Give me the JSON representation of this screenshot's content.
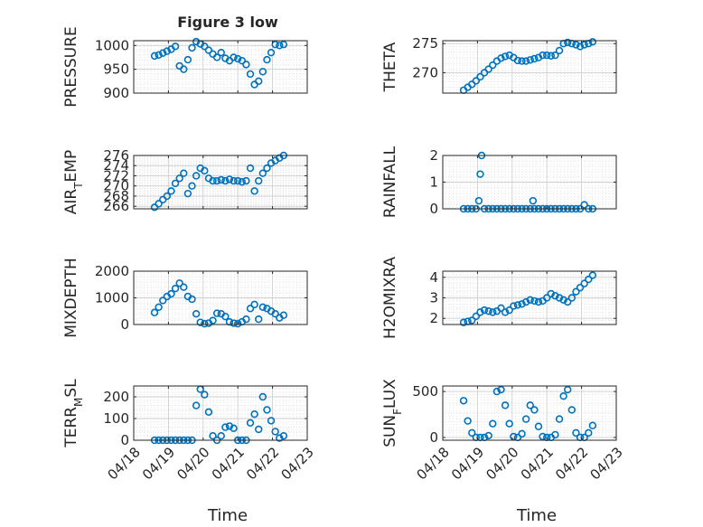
{
  "figure": {
    "title": "Figure 3 low"
  },
  "colors": {
    "marker": "#0072BD",
    "grid": "#dddddd",
    "axis": "#262626"
  },
  "chart_data": [
    {
      "type": "scatter",
      "ylabel": "PRESSURE",
      "xlabel": "",
      "ylim": [
        900,
        1010
      ],
      "yticks": [
        900,
        950,
        1000
      ],
      "x": [
        0.6,
        0.72,
        0.84,
        0.96,
        1.08,
        1.2,
        1.32,
        1.44,
        1.56,
        1.68,
        1.8,
        1.92,
        2.04,
        2.16,
        2.28,
        2.4,
        2.52,
        2.64,
        2.76,
        2.88,
        3.0,
        3.12,
        3.24,
        3.36,
        3.48,
        3.6,
        3.72,
        3.84,
        3.96,
        4.08,
        4.2,
        4.32
      ],
      "y": [
        978,
        980,
        984,
        988,
        992,
        998,
        957,
        950,
        970,
        995,
        1008,
        1003,
        998,
        990,
        982,
        975,
        985,
        973,
        968,
        975,
        972,
        968,
        960,
        940,
        918,
        925,
        945,
        970,
        985,
        1002,
        1000,
        1002
      ]
    },
    {
      "type": "scatter",
      "ylabel": "THETA",
      "xlabel": "",
      "ylim": [
        266.5,
        275.5
      ],
      "yticks": [
        270,
        275
      ],
      "x": [
        0.6,
        0.72,
        0.84,
        0.96,
        1.08,
        1.2,
        1.32,
        1.44,
        1.56,
        1.68,
        1.8,
        1.92,
        2.04,
        2.16,
        2.28,
        2.4,
        2.52,
        2.64,
        2.76,
        2.88,
        3.0,
        3.12,
        3.24,
        3.36,
        3.48,
        3.6,
        3.72,
        3.84,
        3.96,
        4.08,
        4.2,
        4.32
      ],
      "y": [
        267.0,
        267.5,
        268.0,
        268.6,
        269.3,
        270.0,
        270.6,
        271.3,
        272.0,
        272.5,
        272.8,
        273.0,
        272.6,
        272.1,
        272.0,
        272.0,
        272.2,
        272.4,
        272.6,
        273.0,
        273.0,
        272.9,
        273.0,
        273.8,
        275.0,
        275.2,
        275.0,
        274.8,
        274.5,
        274.8,
        275.0,
        275.3
      ]
    },
    {
      "type": "scatter",
      "ylabel": "AIR_TEMP",
      "xlabel": "",
      "ylim": [
        265.5,
        276
      ],
      "yticks": [
        266,
        268,
        270,
        272,
        274,
        276
      ],
      "x": [
        0.6,
        0.72,
        0.84,
        0.96,
        1.08,
        1.2,
        1.32,
        1.44,
        1.56,
        1.68,
        1.8,
        1.92,
        2.04,
        2.16,
        2.28,
        2.4,
        2.52,
        2.64,
        2.76,
        2.88,
        3.0,
        3.12,
        3.24,
        3.36,
        3.48,
        3.6,
        3.72,
        3.84,
        3.96,
        4.08,
        4.2,
        4.32
      ],
      "y": [
        265.8,
        266.5,
        267.3,
        268.0,
        269.0,
        270.5,
        271.5,
        272.5,
        268.5,
        270.0,
        272.0,
        273.5,
        273.0,
        271.5,
        271.0,
        271.0,
        271.2,
        271.0,
        271.3,
        271.0,
        271.0,
        270.8,
        271.0,
        273.5,
        269.0,
        271.0,
        272.5,
        273.5,
        274.5,
        275.0,
        275.5,
        276.0
      ]
    },
    {
      "type": "scatter",
      "ylabel": "RAINFALL",
      "xlabel": "",
      "ylim": [
        0,
        2
      ],
      "yticks": [
        0,
        1,
        2
      ],
      "x": [
        0.6,
        0.72,
        0.84,
        0.96,
        1.04,
        1.08,
        1.12,
        1.2,
        1.32,
        1.44,
        1.56,
        1.68,
        1.8,
        1.92,
        2.04,
        2.16,
        2.28,
        2.4,
        2.52,
        2.6,
        2.64,
        2.76,
        2.88,
        3.0,
        3.12,
        3.24,
        3.36,
        3.48,
        3.6,
        3.72,
        3.84,
        3.96,
        4.08,
        4.2,
        4.32
      ],
      "y": [
        0,
        0,
        0,
        0,
        0.3,
        1.3,
        2.0,
        0,
        0,
        0,
        0,
        0,
        0,
        0,
        0,
        0,
        0,
        0,
        0,
        0.3,
        0,
        0,
        0,
        0,
        0,
        0,
        0,
        0,
        0,
        0,
        0,
        0,
        0.15,
        0,
        0
      ]
    },
    {
      "type": "scatter",
      "ylabel": "MIXDEPTH",
      "xlabel": "",
      "ylim": [
        0,
        2000
      ],
      "yticks": [
        0,
        1000,
        2000
      ],
      "x": [
        0.6,
        0.72,
        0.84,
        0.96,
        1.08,
        1.2,
        1.32,
        1.44,
        1.56,
        1.68,
        1.8,
        1.92,
        2.04,
        2.16,
        2.28,
        2.4,
        2.52,
        2.64,
        2.76,
        2.88,
        3.0,
        3.12,
        3.24,
        3.36,
        3.48,
        3.6,
        3.72,
        3.84,
        3.96,
        4.08,
        4.2,
        4.32
      ],
      "y": [
        450,
        650,
        900,
        1050,
        1150,
        1350,
        1550,
        1400,
        1050,
        950,
        400,
        80,
        30,
        50,
        150,
        420,
        400,
        300,
        100,
        50,
        30,
        100,
        200,
        600,
        750,
        200,
        650,
        600,
        500,
        400,
        250,
        350
      ]
    },
    {
      "type": "scatter",
      "ylabel": "H2OMIXRA",
      "xlabel": "",
      "ylim": [
        1.7,
        4.3
      ],
      "yticks": [
        2,
        3,
        4
      ],
      "x": [
        0.6,
        0.72,
        0.84,
        0.96,
        1.08,
        1.2,
        1.32,
        1.44,
        1.56,
        1.68,
        1.8,
        1.92,
        2.04,
        2.16,
        2.28,
        2.4,
        2.52,
        2.64,
        2.76,
        2.88,
        3.0,
        3.12,
        3.24,
        3.36,
        3.48,
        3.6,
        3.72,
        3.84,
        3.96,
        4.08,
        4.2,
        4.32
      ],
      "y": [
        1.8,
        1.85,
        1.9,
        2.1,
        2.3,
        2.4,
        2.35,
        2.3,
        2.35,
        2.5,
        2.3,
        2.4,
        2.6,
        2.65,
        2.7,
        2.8,
        2.9,
        2.85,
        2.8,
        2.85,
        3.0,
        3.2,
        3.1,
        3.0,
        2.9,
        2.8,
        3.0,
        3.3,
        3.5,
        3.7,
        3.9,
        4.1
      ]
    },
    {
      "type": "scatter",
      "ylabel": "TERR_MSL",
      "xlabel": "",
      "ylim": [
        0,
        250
      ],
      "yticks": [
        0,
        100,
        200
      ],
      "x": [
        0.6,
        0.72,
        0.84,
        0.96,
        1.08,
        1.2,
        1.32,
        1.44,
        1.56,
        1.68,
        1.8,
        1.92,
        2.04,
        2.16,
        2.28,
        2.4,
        2.52,
        2.64,
        2.76,
        2.88,
        3.0,
        3.12,
        3.24,
        3.36,
        3.48,
        3.6,
        3.72,
        3.84,
        3.96,
        4.08,
        4.2,
        4.32
      ],
      "y": [
        0,
        0,
        0,
        0,
        0,
        0,
        0,
        0,
        0,
        0,
        160,
        235,
        210,
        130,
        20,
        0,
        20,
        60,
        65,
        55,
        0,
        0,
        0,
        80,
        120,
        50,
        200,
        140,
        90,
        40,
        10,
        20
      ]
    },
    {
      "type": "scatter",
      "ylabel": "SUN_FLUX",
      "xlabel": "",
      "ylim": [
        -30,
        560
      ],
      "yticks": [
        0,
        500
      ],
      "x": [
        0.6,
        0.72,
        0.84,
        0.96,
        1.08,
        1.2,
        1.32,
        1.44,
        1.56,
        1.68,
        1.8,
        1.92,
        2.04,
        2.16,
        2.28,
        2.4,
        2.52,
        2.64,
        2.76,
        2.88,
        3.0,
        3.12,
        3.24,
        3.36,
        3.48,
        3.6,
        3.72,
        3.84,
        3.96,
        4.08,
        4.2,
        4.32
      ],
      "y": [
        400,
        180,
        50,
        0,
        0,
        0,
        20,
        150,
        500,
        520,
        350,
        150,
        10,
        0,
        40,
        200,
        350,
        300,
        120,
        10,
        0,
        0,
        30,
        200,
        450,
        520,
        300,
        50,
        0,
        0,
        50,
        130
      ]
    }
  ],
  "x_axis": {
    "xlim": [
      0,
      5
    ],
    "ticks": [
      0,
      1,
      2,
      3,
      4,
      5
    ],
    "ticklabels": [
      "04/18",
      "04/19",
      "04/20",
      "04/21",
      "04/22",
      "04/23"
    ],
    "xlabel": "Time"
  }
}
